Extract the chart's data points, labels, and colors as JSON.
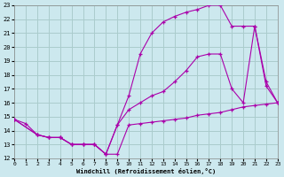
{
  "background_color": "#cce8ee",
  "grid_color": "#aacccc",
  "line_color": "#aa00aa",
  "xlabel": "Windchill (Refroidissement éolien,°C)",
  "ylim": [
    12,
    23
  ],
  "xlim": [
    0,
    23
  ],
  "yticks": [
    12,
    13,
    14,
    15,
    16,
    17,
    18,
    19,
    20,
    21,
    22,
    23
  ],
  "xticks": [
    0,
    1,
    2,
    3,
    4,
    5,
    6,
    7,
    8,
    9,
    10,
    11,
    12,
    13,
    14,
    15,
    16,
    17,
    18,
    19,
    20,
    21,
    22,
    23
  ],
  "line1_x": [
    0,
    1,
    2,
    3,
    4,
    5,
    6,
    7,
    8,
    9,
    10,
    11,
    12,
    13,
    14,
    15,
    16,
    17,
    18,
    19,
    20,
    21,
    22,
    23
  ],
  "line1_y": [
    14.8,
    14.5,
    13.7,
    13.5,
    13.5,
    13.0,
    13.0,
    13.0,
    12.3,
    12.3,
    14.4,
    14.5,
    14.6,
    14.7,
    14.8,
    14.9,
    15.1,
    15.2,
    15.3,
    15.5,
    15.7,
    15.8,
    15.9,
    16.0
  ],
  "line2_x": [
    0,
    2,
    3,
    4,
    5,
    6,
    7,
    8,
    9,
    10,
    11,
    12,
    13,
    14,
    15,
    16,
    17,
    18,
    19,
    20,
    21,
    22,
    23
  ],
  "line2_y": [
    14.8,
    13.7,
    13.5,
    13.5,
    13.0,
    13.0,
    13.0,
    12.3,
    14.4,
    15.5,
    16.0,
    16.5,
    16.8,
    17.5,
    18.3,
    19.3,
    19.5,
    19.5,
    17.0,
    16.0,
    21.5,
    17.5,
    16.0
  ],
  "line3_x": [
    0,
    2,
    3,
    4,
    5,
    6,
    7,
    8,
    9,
    10,
    11,
    12,
    13,
    14,
    15,
    16,
    17,
    18,
    19,
    20,
    21,
    22,
    23
  ],
  "line3_y": [
    14.8,
    13.7,
    13.5,
    13.5,
    13.0,
    13.0,
    13.0,
    12.3,
    14.4,
    16.5,
    19.5,
    21.0,
    21.8,
    22.2,
    22.5,
    22.7,
    23.0,
    23.0,
    21.5,
    21.5,
    21.5,
    17.2,
    16.0
  ]
}
